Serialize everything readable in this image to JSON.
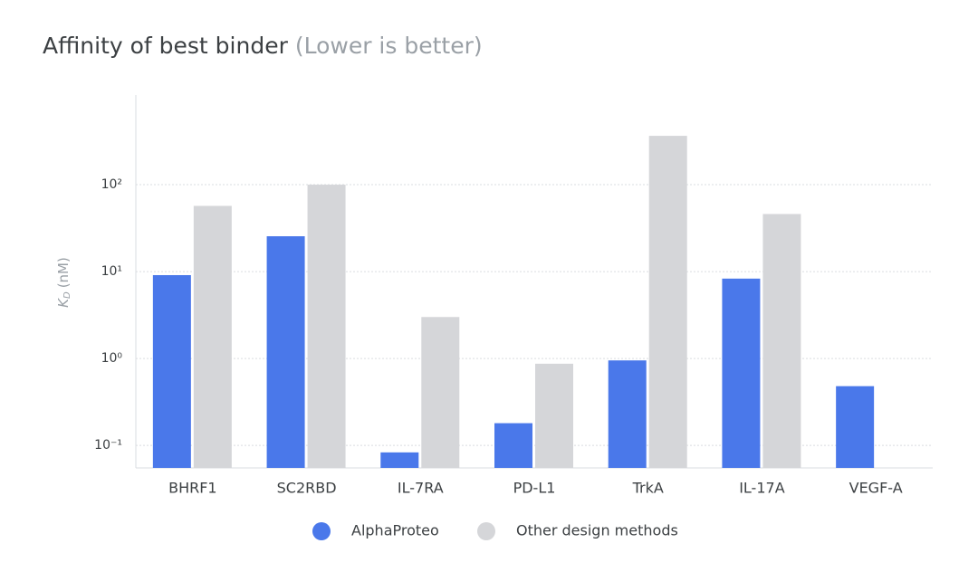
{
  "chart_data": {
    "type": "bar",
    "title": "Affinity of best binder",
    "subtitle": "(Lower is better)",
    "y_label": [
      "K",
      "D",
      "(nM)"
    ],
    "categories": [
      "BHRF1",
      "SC2RBD",
      "IL-7RA",
      "PD-L1",
      "TrkA",
      "IL-17A",
      "VEGF-A"
    ],
    "series": [
      {
        "name": "AlphaProteo",
        "color": "#4a78ea",
        "values": [
          9.1,
          25.5,
          0.083,
          0.18,
          0.95,
          8.3,
          0.48
        ]
      },
      {
        "name": "Other design methods",
        "color": "#d5d6d9",
        "values": [
          57,
          100,
          3.0,
          0.87,
          365,
          46,
          null
        ]
      }
    ],
    "log_scale": true,
    "ylim": [
      0.055,
      1076
    ],
    "yticks": [
      {
        "value": 0.1,
        "label": "10⁻¹"
      },
      {
        "value": 1,
        "label": "10⁰"
      },
      {
        "value": 10,
        "label": "10¹"
      },
      {
        "value": 100,
        "label": "10²"
      }
    ],
    "grid": true,
    "legend": "bottom"
  }
}
